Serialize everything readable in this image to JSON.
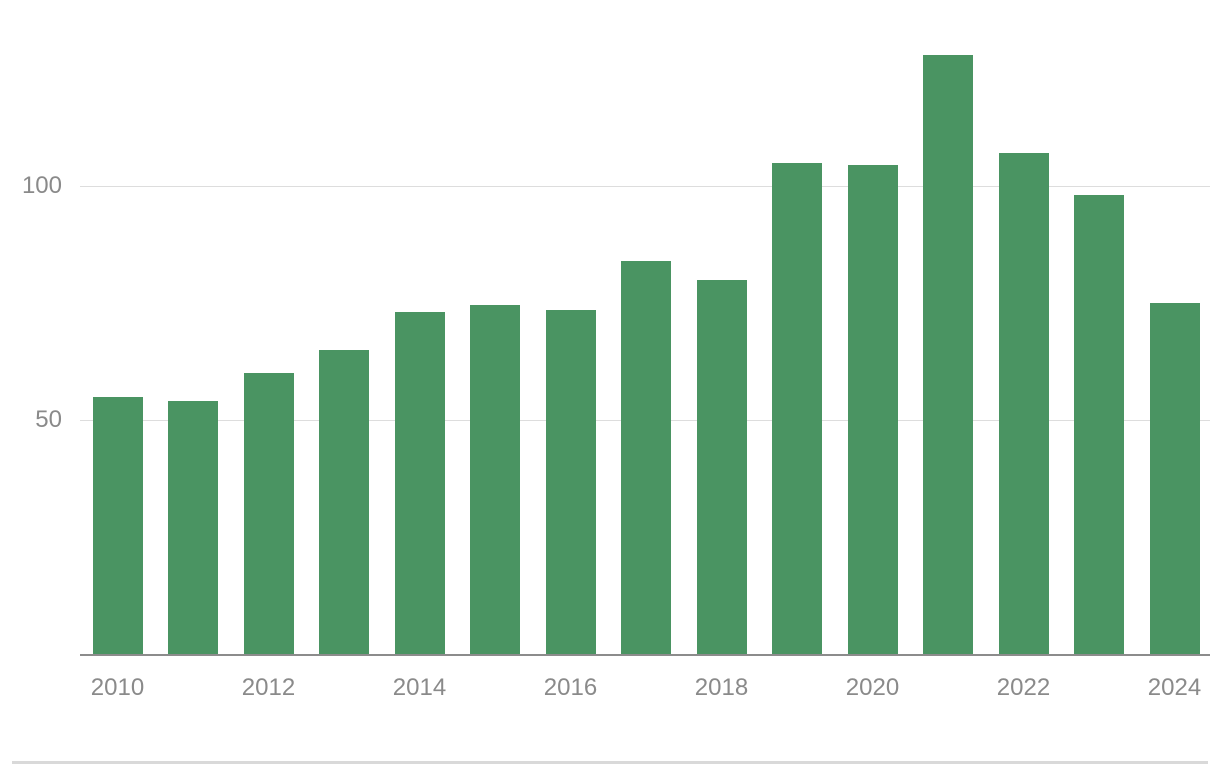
{
  "chart_data": {
    "type": "bar",
    "categories": [
      "2010",
      "2011",
      "2012",
      "2013",
      "2014",
      "2015",
      "2016",
      "2017",
      "2018",
      "2019",
      "2020",
      "2021",
      "2022",
      "2023",
      "2024"
    ],
    "values": [
      55,
      54,
      60,
      65,
      73,
      74.5,
      73.5,
      84,
      80,
      105,
      104.5,
      128,
      107,
      98,
      75
    ],
    "title": "",
    "xlabel": "",
    "ylabel": "",
    "ylim": [
      0,
      140
    ],
    "y_ticks": [
      50,
      100
    ],
    "y_tick_labels": [
      "50",
      "100"
    ],
    "x_tick_labels": [
      "2010",
      "2012",
      "2014",
      "2016",
      "2018",
      "2020",
      "2022",
      "2024"
    ],
    "x_tick_indices": [
      0,
      2,
      4,
      6,
      8,
      10,
      12,
      14
    ],
    "grid": "horizontal",
    "legend": "none",
    "colors": {
      "bar": "#4a9462",
      "axis": "#8c8c8c",
      "gridline": "#dddddd",
      "tick_label": "#8a8a8a",
      "divider": "#d9d9d9"
    }
  }
}
